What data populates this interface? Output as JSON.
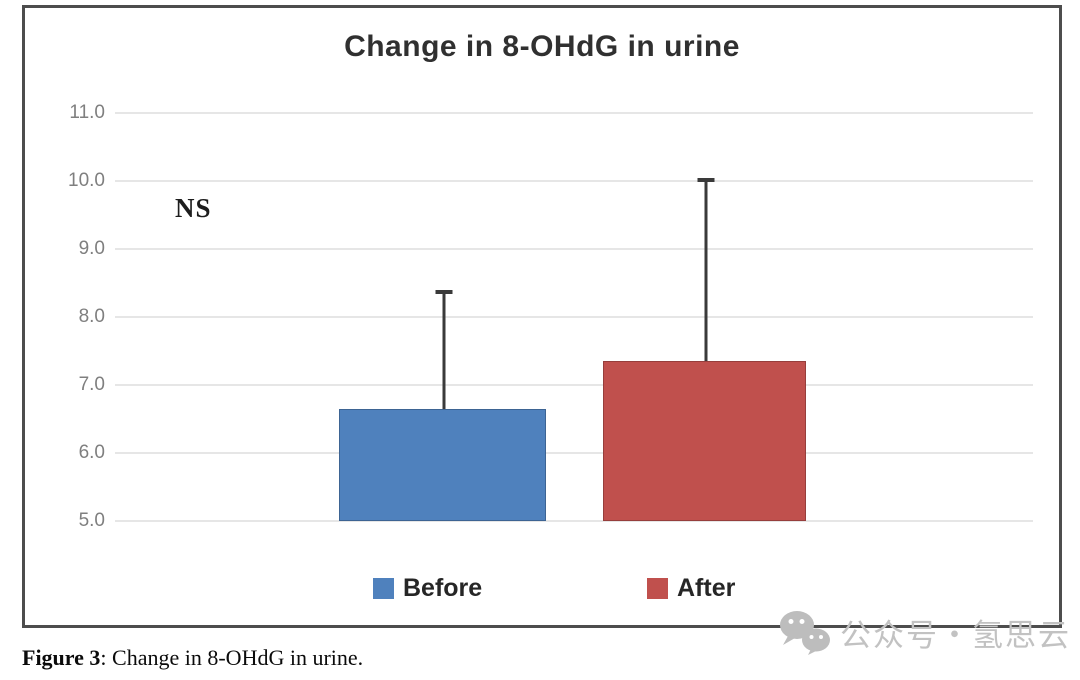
{
  "figure": {
    "caption_label": "Figure 3",
    "caption_text": ": Change in 8-OHdG in urine."
  },
  "watermark": {
    "icon": "wechat-official-account-icon",
    "text": "公众号・氢思云"
  },
  "chart_data": {
    "type": "bar",
    "title": "Change in 8-OHdG in urine",
    "categories": [
      "Before",
      "After"
    ],
    "values": [
      6.65,
      7.35
    ],
    "error_upper": [
      8.4,
      10.05
    ],
    "annotation": "NS",
    "xlabel": "",
    "ylabel": "",
    "ylim": [
      5.0,
      11.0
    ],
    "ytick_labels": [
      "11.0",
      "10.0",
      "9.0",
      "8.0",
      "7.0",
      "6.0",
      "5.0"
    ],
    "grid": true,
    "legend_position": "bottom",
    "legend": [
      {
        "label": "Before",
        "color": "#4F81BD"
      },
      {
        "label": "After",
        "color": "#C0504D"
      }
    ],
    "error_bar_color": "#3a3a3a",
    "gridline_color": "#e6e6e6"
  }
}
